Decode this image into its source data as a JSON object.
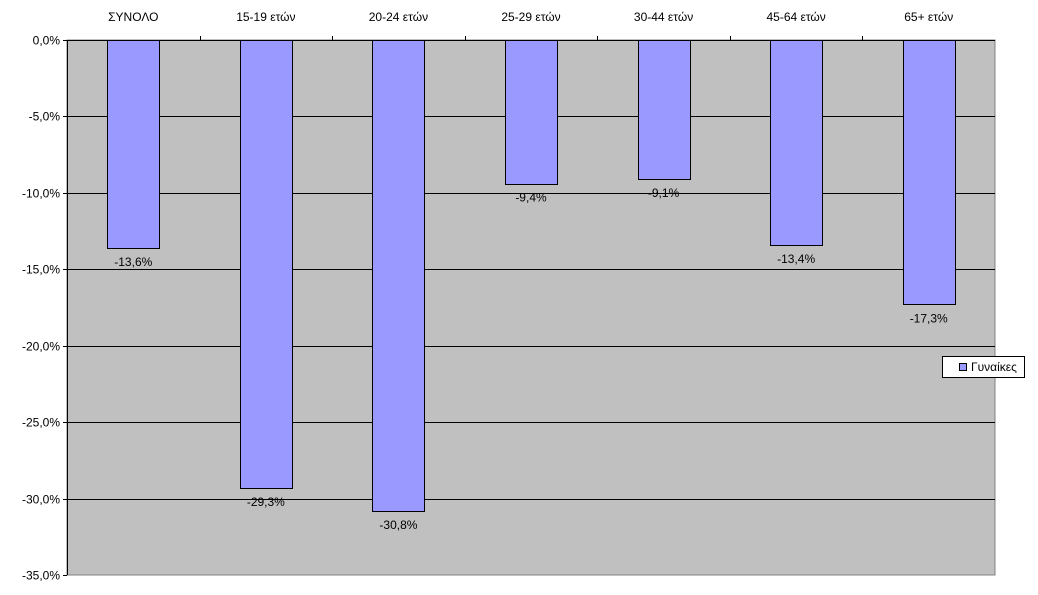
{
  "chart_data": {
    "type": "bar",
    "title": "",
    "xlabel": "",
    "ylabel": "",
    "categories": [
      "ΣΥΝΟΛΟ",
      "15-19  ετών",
      "20-24  ετών",
      "25-29  ετών",
      "30-44  ετών",
      "45-64  ετών",
      "65+  ετών"
    ],
    "series": [
      {
        "name": "Γυναίκες",
        "values": [
          -13.6,
          -29.3,
          -30.8,
          -9.4,
          -9.1,
          -13.4,
          -17.3
        ],
        "data_labels": [
          "-13,6%",
          "-29,3%",
          "-30,8%",
          "-9,4%",
          "-9,1%",
          "-13,4%",
          "-17,3%"
        ]
      }
    ],
    "ylim": [
      -35,
      0
    ],
    "y_ticks": [
      0,
      -5,
      -10,
      -15,
      -20,
      -25,
      -30,
      -35
    ],
    "y_tick_labels": [
      "0,0%",
      "-5,0%",
      "-10,0%",
      "-15,0%",
      "-20,0%",
      "-25,0%",
      "-30,0%",
      "-35,0%"
    ],
    "x_axis_position": "top",
    "grid": true,
    "legend_position": "right",
    "colors": {
      "plot_background": "#c0c0c0",
      "bar_fill": "#9999ff",
      "bar_stroke": "#000000",
      "gridline": "#000000"
    }
  }
}
